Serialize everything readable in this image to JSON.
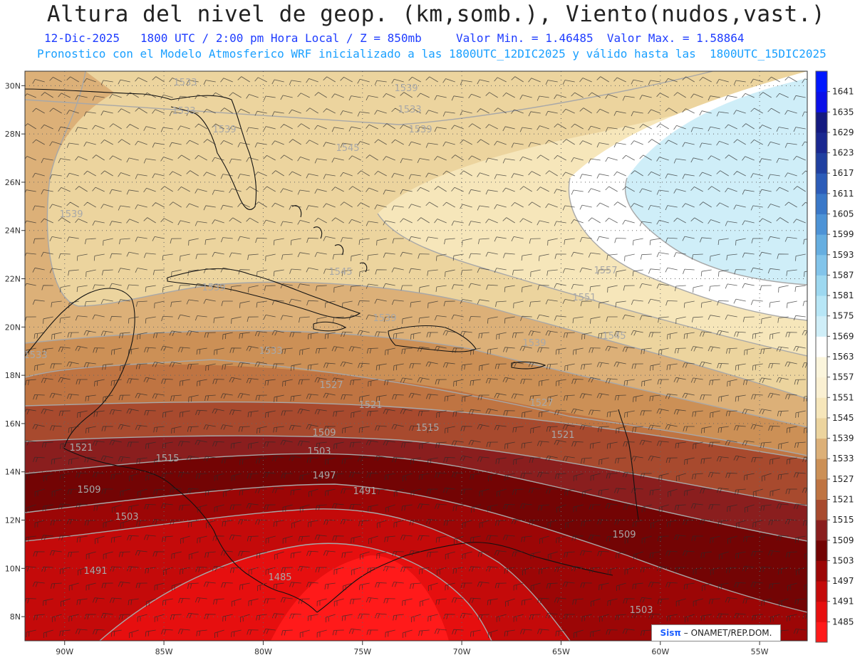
{
  "header": {
    "title": "Altura del nivel de geop. (km,somb.), Viento(nudos,vast.)",
    "line2": "12-Dic-2025   1800 UTC / 2:00 pm Hora Local / Z = 850mb     Valor Min. = 1.46485  Valor Max. = 1.58864",
    "line3": "Pronostico con el Modelo Atmosferico WRF inicializado a las 1800UTC_12DIC2025 y válido hasta las  1800UTC_15DIC2025"
  },
  "map": {
    "lon_range": [
      -92,
      -52.6
    ],
    "lat_range": [
      7,
      30.6
    ],
    "lon_ticks": [
      "90W",
      "85W",
      "80W",
      "75W",
      "70W",
      "65W",
      "60W",
      "55W"
    ],
    "lon_tick_values": [
      -90,
      -85,
      -80,
      -75,
      -70,
      -65,
      -60,
      -55
    ],
    "lat_ticks": [
      "8N",
      "10N",
      "12N",
      "14N",
      "16N",
      "18N",
      "20N",
      "22N",
      "24N",
      "26N",
      "28N",
      "30N"
    ],
    "lat_tick_values": [
      8,
      10,
      12,
      14,
      16,
      18,
      20,
      22,
      24,
      26,
      28,
      30
    ],
    "grid": true
  },
  "colorbar": {
    "levels": [
      "1485",
      "1491",
      "1497",
      "1503",
      "1509",
      "1515",
      "1521",
      "1527",
      "1533",
      "1539",
      "1545",
      "1551",
      "1557",
      "1563",
      "1569",
      "1575",
      "1581",
      "1587",
      "1593",
      "1599",
      "1605",
      "1611",
      "1617",
      "1623",
      "1629",
      "1635",
      "1641"
    ],
    "colors": [
      "#ff1a1a",
      "#e60f0f",
      "#c40a0a",
      "#9c0606",
      "#730404",
      "#8a1e1e",
      "#a84a2e",
      "#bf7442",
      "#cc9056",
      "#dcb078",
      "#ecd49e",
      "#f6e6ba",
      "#faf0d2",
      "#fbf5dc",
      "#ffffff",
      "#cfeef8",
      "#b7e6f6",
      "#9dd8f0",
      "#82c4ea",
      "#66aee0",
      "#4d93d6",
      "#3a78c8",
      "#2c5cb8",
      "#2040a0",
      "#1a2890",
      "#141a80",
      "#0a10e8",
      "#0018ff"
    ]
  },
  "contour_labels": [
    "1533",
    "1533",
    "1539",
    "1539",
    "1545",
    "1539",
    "1545",
    "1557",
    "1539",
    "1551",
    "1539",
    "1545",
    "1539",
    "1533",
    "1533",
    "1527",
    "1521",
    "1527",
    "1515",
    "1521",
    "1509",
    "1503",
    "1521",
    "1515",
    "1509",
    "1503",
    "1497",
    "1491",
    "1485",
    "1491",
    "1509",
    "1503",
    "1533",
    "1539"
  ],
  "credit": {
    "brand": "Sisπ",
    "text": "– ONAMET/REP.DOM."
  }
}
